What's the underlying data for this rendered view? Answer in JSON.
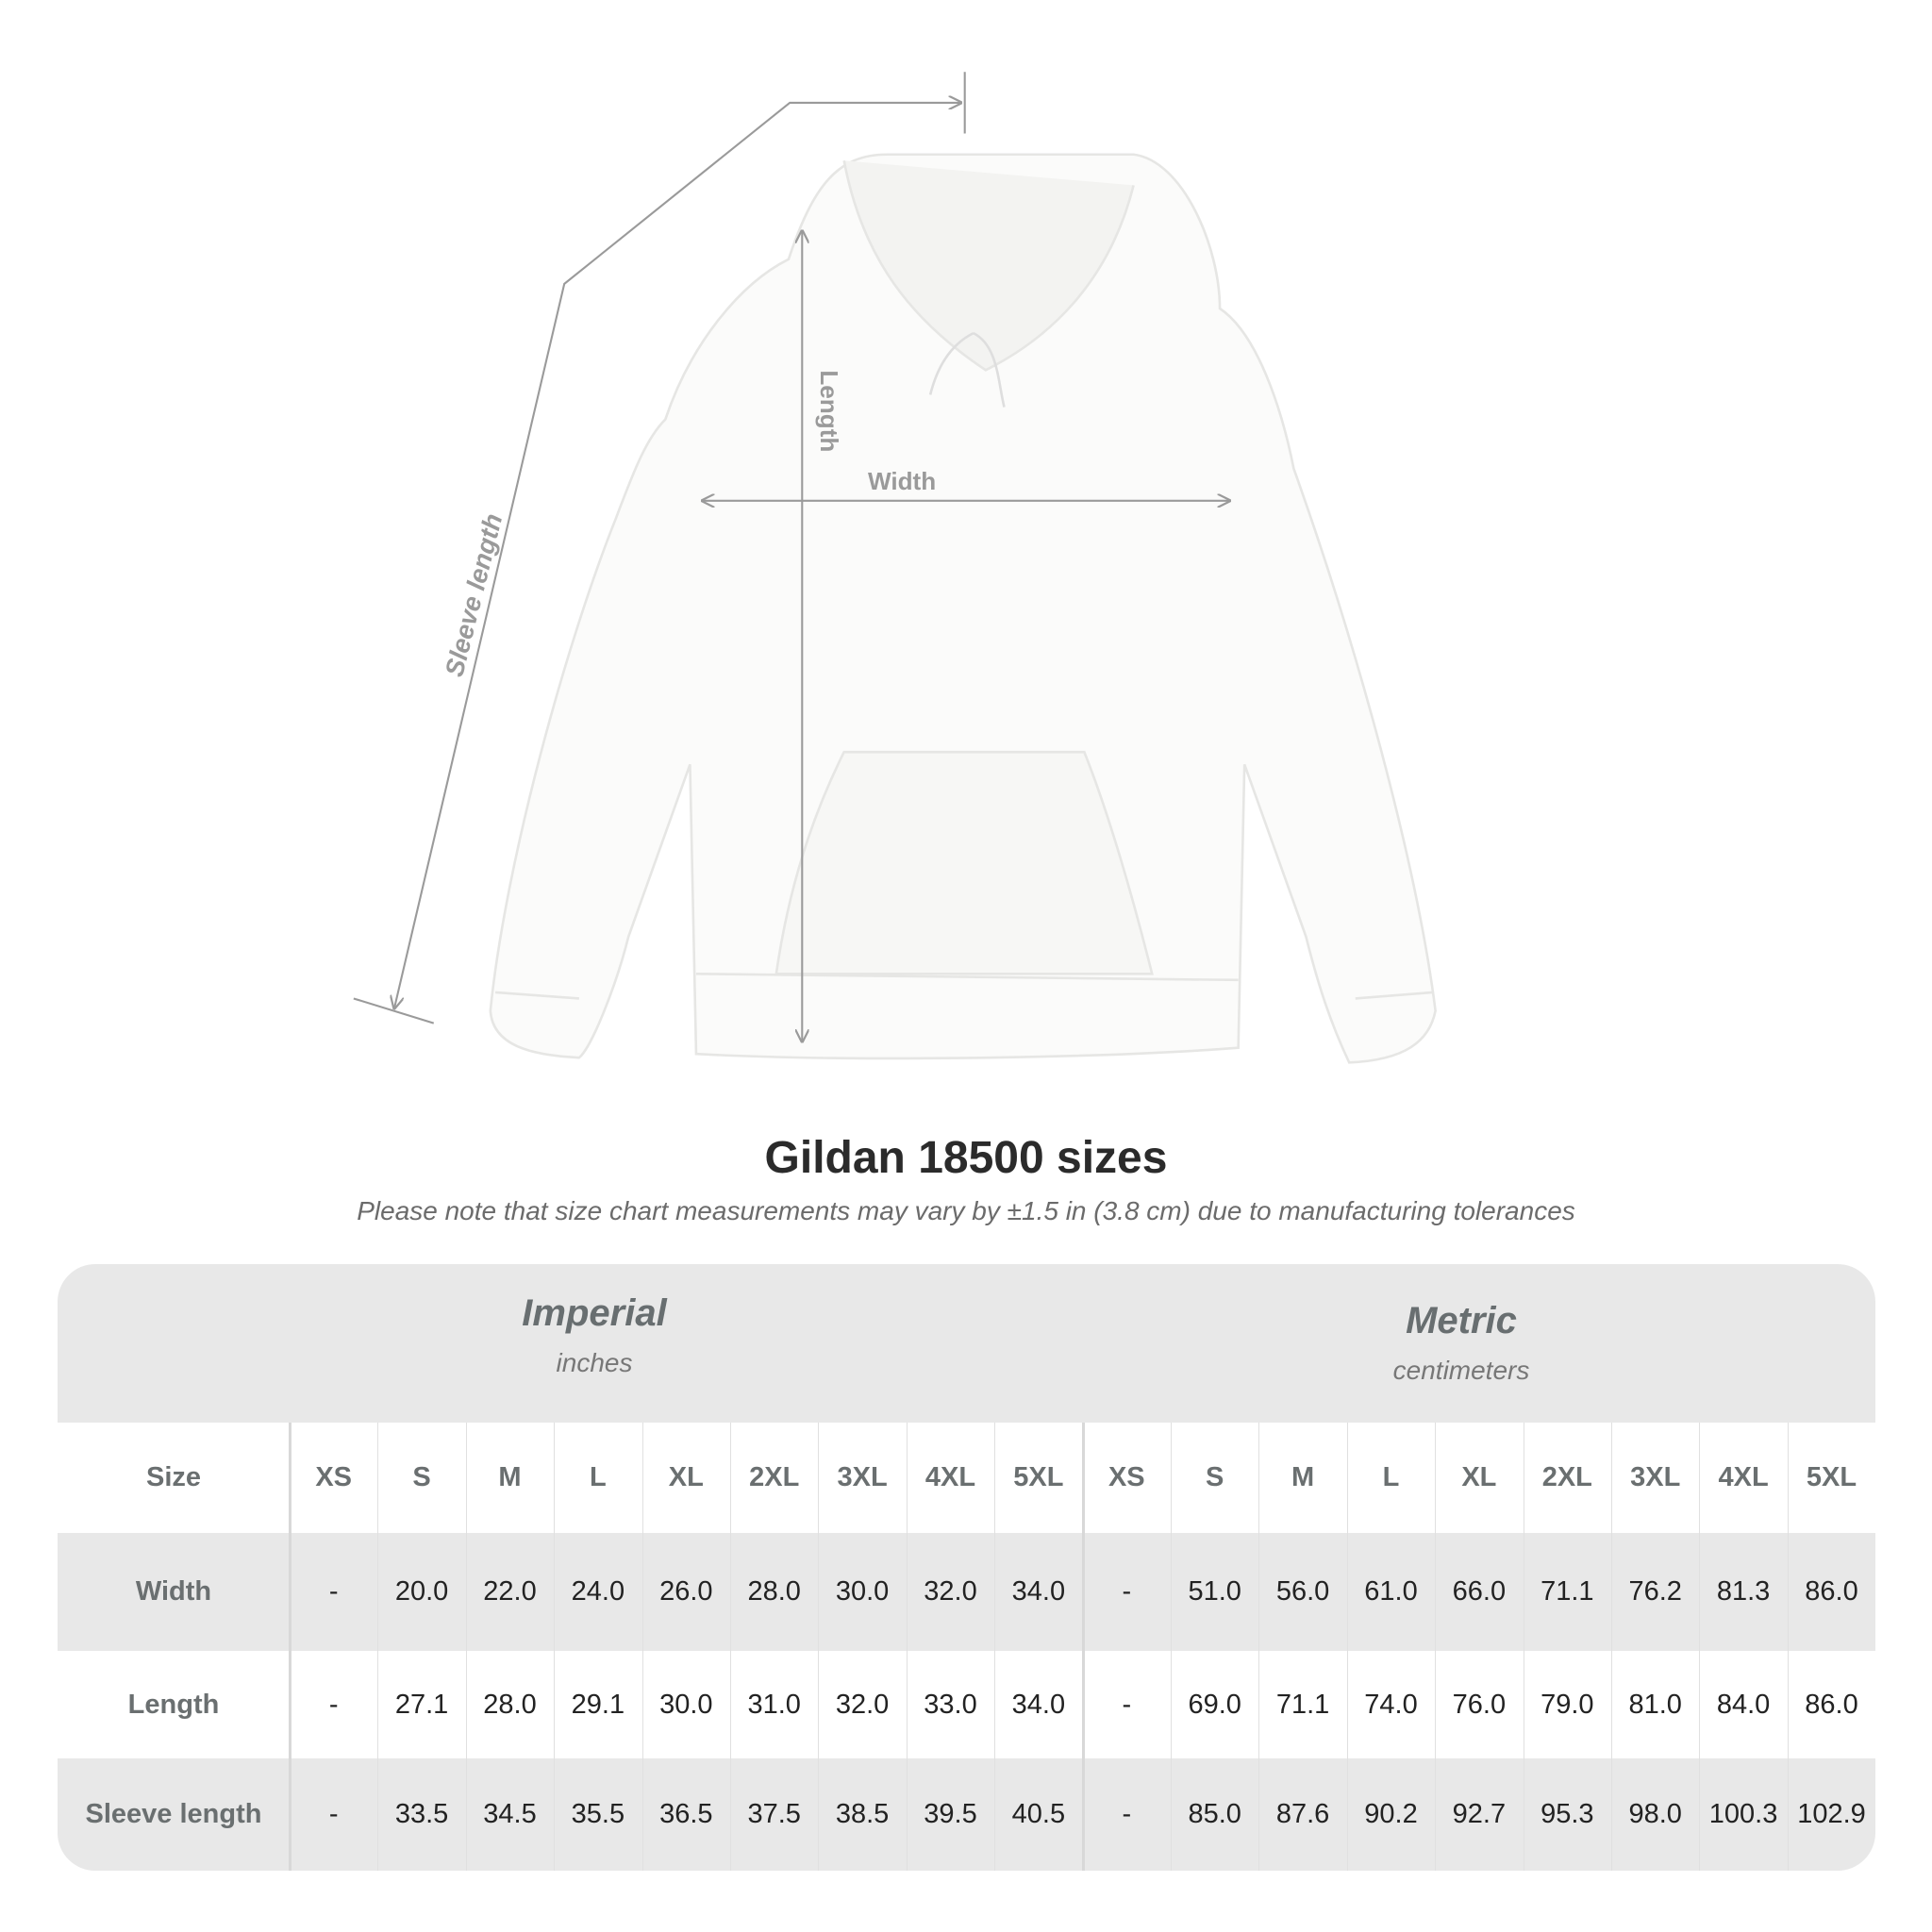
{
  "diagram": {
    "labels": {
      "sleeve": "Sleeve length",
      "length": "Length",
      "width": "Width"
    },
    "line_color": "#9a9a9a"
  },
  "title": "Gildan 18500 sizes",
  "subtitle": "Please note that size chart measurements may vary by ±1.5 in (3.8 cm) due to manufacturing tolerances",
  "table": {
    "groups": [
      {
        "title": "Imperial",
        "unit": "inches"
      },
      {
        "title": "Metric",
        "unit": "centimeters"
      }
    ],
    "size_label": "Size",
    "sizes": [
      "XS",
      "S",
      "M",
      "L",
      "XL",
      "2XL",
      "3XL",
      "4XL",
      "5XL",
      "XS",
      "S",
      "M",
      "L",
      "XL",
      "2XL",
      "3XL",
      "4XL",
      "5XL"
    ],
    "rows": [
      {
        "label": "Width",
        "values": [
          "-",
          "20.0",
          "22.0",
          "24.0",
          "26.0",
          "28.0",
          "30.0",
          "32.0",
          "34.0",
          "-",
          "51.0",
          "56.0",
          "61.0",
          "66.0",
          "71.1",
          "76.2",
          "81.3",
          "86.0"
        ]
      },
      {
        "label": "Length",
        "values": [
          "-",
          "27.1",
          "28.0",
          "29.1",
          "30.0",
          "31.0",
          "32.0",
          "33.0",
          "34.0",
          "-",
          "69.0",
          "71.1",
          "74.0",
          "76.0",
          "79.0",
          "81.0",
          "84.0",
          "86.0"
        ]
      },
      {
        "label": "Sleeve length",
        "values": [
          "-",
          "33.5",
          "34.5",
          "35.5",
          "36.5",
          "37.5",
          "38.5",
          "39.5",
          "40.5",
          "-",
          "85.0",
          "87.6",
          "90.2",
          "92.7",
          "95.3",
          "98.0",
          "100.3",
          "102.9"
        ]
      }
    ]
  }
}
